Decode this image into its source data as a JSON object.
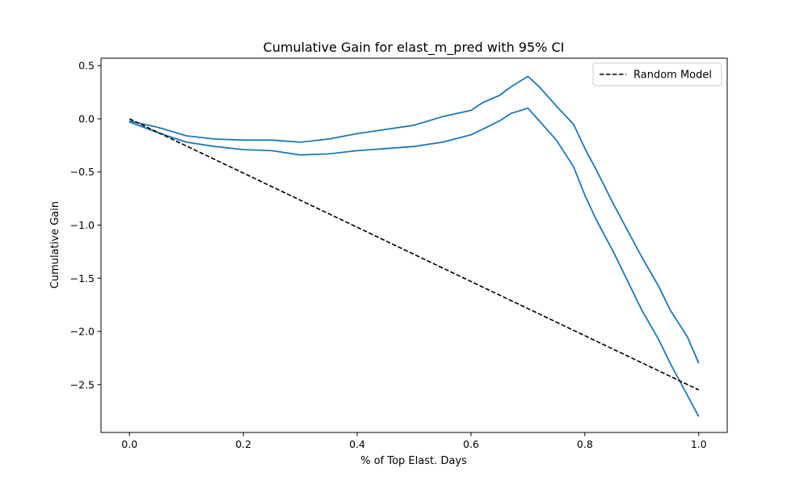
{
  "chart_data": {
    "type": "line",
    "title": "Cumulative Gain for elast_m_pred with 95% CI",
    "xlabel": "% of Top Elast. Days",
    "ylabel": "Cumulative Gain",
    "xlim": [
      -0.05,
      1.05
    ],
    "ylim": [
      -2.95,
      0.57
    ],
    "x_ticks": [
      0.0,
      0.2,
      0.4,
      0.6,
      0.8,
      1.0
    ],
    "x_tick_labels": [
      "0.0",
      "0.2",
      "0.4",
      "0.6",
      "0.8",
      "1.0"
    ],
    "y_ticks": [
      0.5,
      0.0,
      -0.5,
      -1.0,
      -1.5,
      -2.0,
      -2.5
    ],
    "y_tick_labels": [
      "0.5",
      "0.0",
      "−0.5",
      "−1.0",
      "−1.5",
      "−2.0",
      "−2.5"
    ],
    "grid": false,
    "legend": {
      "placement": "top-right",
      "entries": [
        "Random Model"
      ]
    },
    "colors": {
      "ci": "#1f77b4",
      "random": "#000000"
    },
    "series": [
      {
        "name": "",
        "style": "solid",
        "color": "#1f77b4",
        "x": [
          0.0,
          0.05,
          0.1,
          0.15,
          0.2,
          0.25,
          0.3,
          0.35,
          0.4,
          0.45,
          0.5,
          0.55,
          0.6,
          0.62,
          0.65,
          0.67,
          0.7,
          0.72,
          0.75,
          0.78,
          0.8,
          0.82,
          0.85,
          0.88,
          0.9,
          0.93,
          0.95,
          0.98,
          1.0
        ],
        "y": [
          -0.02,
          -0.08,
          -0.16,
          -0.19,
          -0.2,
          -0.2,
          -0.22,
          -0.19,
          -0.14,
          -0.1,
          -0.06,
          0.02,
          0.08,
          0.15,
          0.22,
          0.3,
          0.4,
          0.3,
          0.12,
          -0.05,
          -0.28,
          -0.48,
          -0.8,
          -1.1,
          -1.3,
          -1.58,
          -1.8,
          -2.05,
          -2.3
        ]
      },
      {
        "name": "",
        "style": "solid",
        "color": "#1f77b4",
        "x": [
          0.0,
          0.05,
          0.1,
          0.15,
          0.2,
          0.25,
          0.3,
          0.35,
          0.4,
          0.45,
          0.5,
          0.55,
          0.6,
          0.62,
          0.65,
          0.67,
          0.7,
          0.72,
          0.75,
          0.78,
          0.8,
          0.82,
          0.85,
          0.88,
          0.9,
          0.93,
          0.95,
          0.98,
          1.0
        ],
        "y": [
          -0.03,
          -0.13,
          -0.22,
          -0.26,
          -0.29,
          -0.3,
          -0.34,
          -0.33,
          -0.3,
          -0.28,
          -0.26,
          -0.22,
          -0.15,
          -0.1,
          -0.02,
          0.05,
          0.1,
          -0.02,
          -0.2,
          -0.45,
          -0.72,
          -0.95,
          -1.25,
          -1.58,
          -1.8,
          -2.08,
          -2.3,
          -2.6,
          -2.8
        ]
      },
      {
        "name": "Random Model",
        "style": "dashed",
        "color": "#000000",
        "x": [
          0.0,
          1.0
        ],
        "y": [
          0.0,
          -2.55
        ]
      }
    ]
  }
}
